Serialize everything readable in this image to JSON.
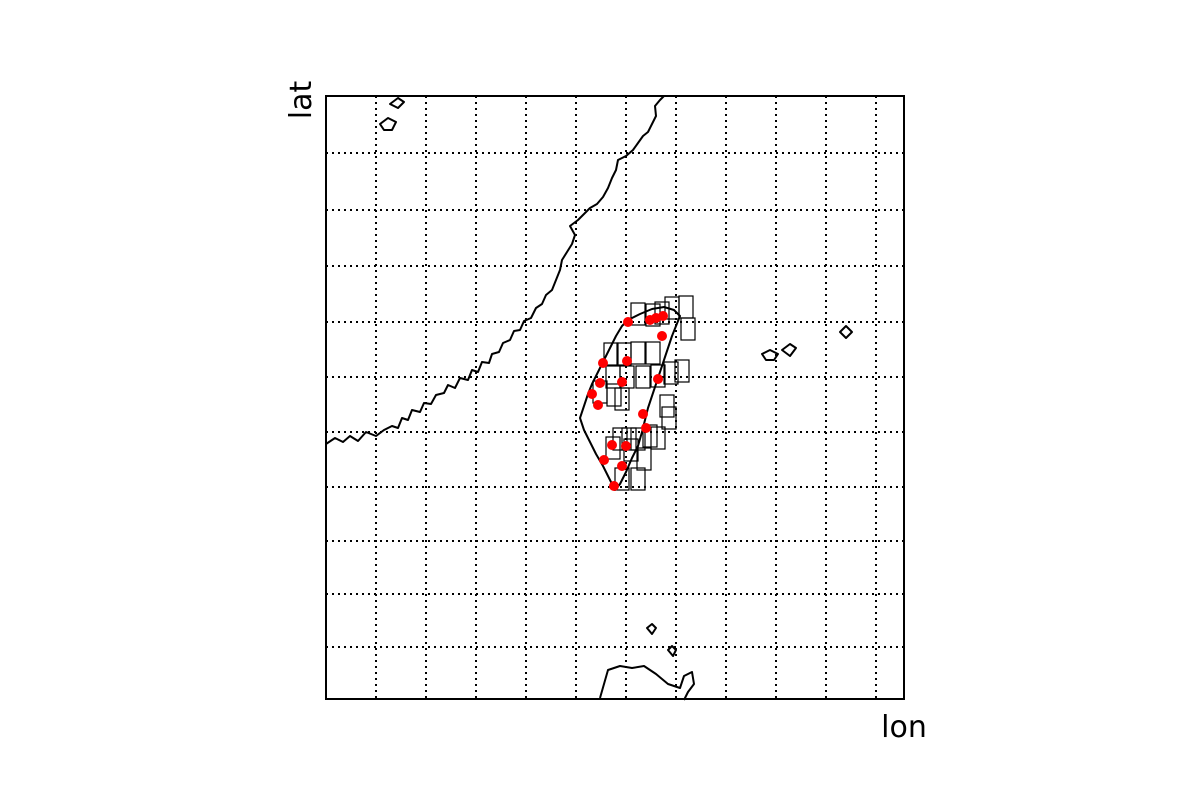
{
  "map": {
    "xlabel": "lon",
    "ylabel": "lat",
    "grid": true,
    "grid_style": "dotted",
    "colors": {
      "background": "#ffffff",
      "coastline": "#000000",
      "grid": "#000000",
      "station": "#ff0000",
      "box": "#000000"
    }
  }
}
